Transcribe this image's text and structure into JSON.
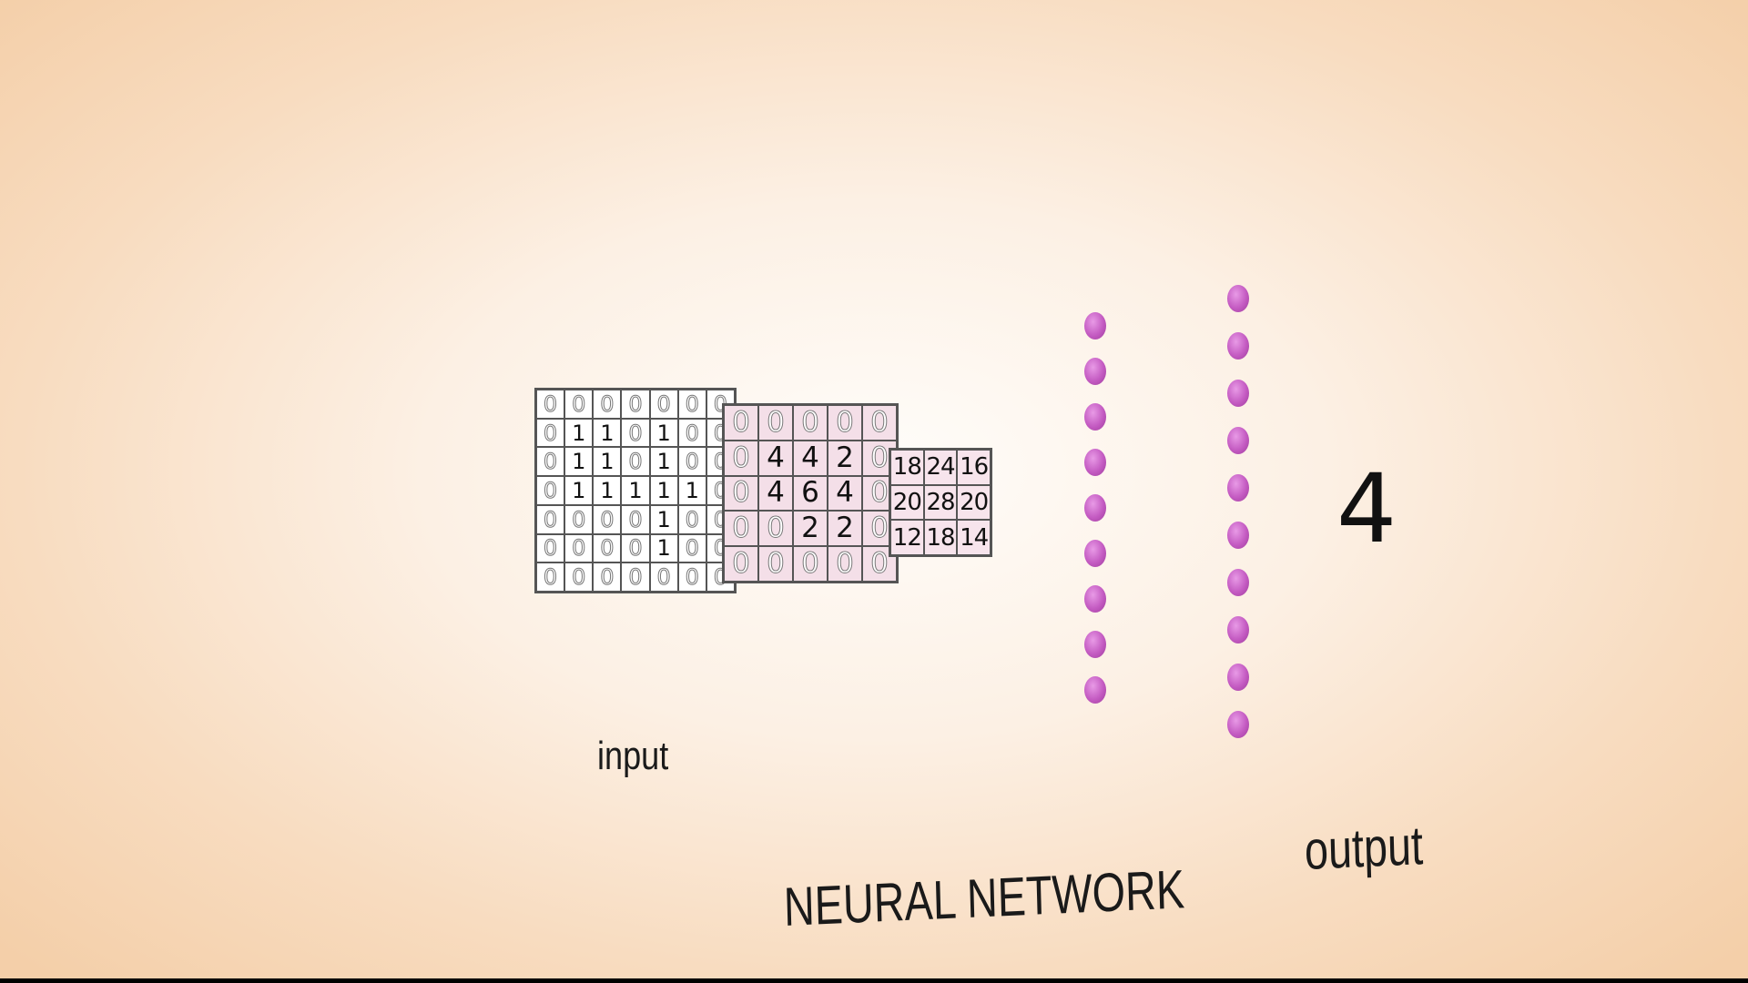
{
  "input": {
    "label": "input",
    "grid": [
      [
        "0",
        "0",
        "0",
        "0",
        "0",
        "0",
        "0"
      ],
      [
        "0",
        "1",
        "1",
        "0",
        "1",
        "0",
        "0"
      ],
      [
        "0",
        "1",
        "1",
        "0",
        "1",
        "0",
        "0"
      ],
      [
        "0",
        "1",
        "1",
        "1",
        "1",
        "1",
        "0"
      ],
      [
        "0",
        "0",
        "0",
        "0",
        "1",
        "0",
        "0"
      ],
      [
        "0",
        "0",
        "0",
        "0",
        "1",
        "0",
        "0"
      ],
      [
        "0",
        "0",
        "0",
        "0",
        "0",
        "0",
        "0"
      ]
    ]
  },
  "conv1": {
    "grid": [
      [
        "0",
        "0",
        "0",
        "0",
        "0"
      ],
      [
        "0",
        "4",
        "4",
        "2",
        "0"
      ],
      [
        "0",
        "4",
        "6",
        "4",
        "0"
      ],
      [
        "0",
        "0",
        "2",
        "2",
        "0"
      ],
      [
        "0",
        "0",
        "0",
        "0",
        "0"
      ]
    ]
  },
  "conv2": {
    "grid": [
      [
        "18",
        "24",
        "16"
      ],
      [
        "20",
        "28",
        "20"
      ],
      [
        "12",
        "18",
        "14"
      ]
    ]
  },
  "network": {
    "label": "NEURAL NETWORK",
    "layers": [
      {
        "nodes": 9
      },
      {
        "nodes": 10
      }
    ],
    "node_color": "#c45bc2"
  },
  "output": {
    "label": "output",
    "value": "4"
  },
  "colors": {
    "background_center": "#fffdfa",
    "background_edge": "#f4cfa9",
    "feature_map_fill": "#f4dfe8"
  }
}
